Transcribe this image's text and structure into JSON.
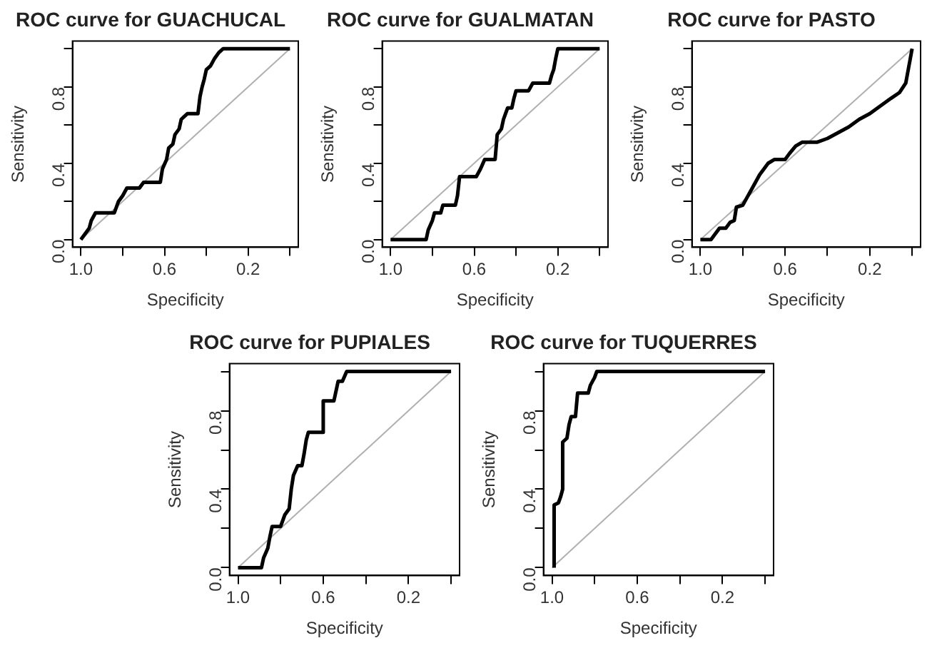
{
  "chart_data": [
    {
      "type": "line",
      "title": "ROC curve for GUACHUCAL",
      "xlabel": "Specificity",
      "ylabel": "Sensitivity",
      "xlim": [
        1.04,
        -0.04
      ],
      "ylim": [
        -0.04,
        1.04
      ],
      "xticks": [
        {
          "value": 1.0,
          "label": "1.0"
        },
        {
          "value": 0.8,
          "label": null
        },
        {
          "value": 0.6,
          "label": "0.6"
        },
        {
          "value": 0.4,
          "label": null
        },
        {
          "value": 0.2,
          "label": "0.2"
        },
        {
          "value": 0.0,
          "label": null
        }
      ],
      "yticks": [
        {
          "value": 0.0,
          "label": "0.0"
        },
        {
          "value": 0.2,
          "label": null
        },
        {
          "value": 0.4,
          "label": "0.4"
        },
        {
          "value": 0.6,
          "label": null
        },
        {
          "value": 0.8,
          "label": "0.8"
        },
        {
          "value": 1.0,
          "label": null
        }
      ],
      "grid": false,
      "legend": false,
      "marker": "none",
      "line_style": "solid",
      "series": [
        {
          "color": "#000000",
          "x": [
            1.0,
            0.98,
            0.96,
            0.95,
            0.93,
            0.84,
            0.82,
            0.8,
            0.78,
            0.72,
            0.7,
            0.62,
            0.61,
            0.59,
            0.58,
            0.56,
            0.55,
            0.53,
            0.52,
            0.49,
            0.44,
            0.43,
            0.42,
            0.41,
            0.4,
            0.38,
            0.36,
            0.34,
            0.32,
            0.0
          ],
          "values": [
            0,
            0.03,
            0.06,
            0.1,
            0.14,
            0.14,
            0.2,
            0.23,
            0.27,
            0.27,
            0.3,
            0.3,
            0.37,
            0.42,
            0.48,
            0.5,
            0.55,
            0.58,
            0.63,
            0.66,
            0.66,
            0.75,
            0.8,
            0.84,
            0.89,
            0.91,
            0.95,
            0.98,
            1.0,
            1.0
          ]
        },
        {
          "color": "#b0b0b0",
          "x": [
            1.0,
            0.0
          ],
          "values": [
            0.0,
            1.0
          ]
        }
      ]
    },
    {
      "type": "line",
      "title": "ROC curve for GUALMATAN",
      "xlabel": "Specificity",
      "ylabel": "Sensitivity",
      "xlim": [
        1.04,
        -0.04
      ],
      "ylim": [
        -0.04,
        1.04
      ],
      "xticks": [
        {
          "value": 1.0,
          "label": "1.0"
        },
        {
          "value": 0.8,
          "label": null
        },
        {
          "value": 0.6,
          "label": "0.6"
        },
        {
          "value": 0.4,
          "label": null
        },
        {
          "value": 0.2,
          "label": "0.2"
        },
        {
          "value": 0.0,
          "label": null
        }
      ],
      "yticks": [
        {
          "value": 0.0,
          "label": "0.0"
        },
        {
          "value": 0.2,
          "label": null
        },
        {
          "value": 0.4,
          "label": "0.4"
        },
        {
          "value": 0.6,
          "label": null
        },
        {
          "value": 0.8,
          "label": "0.8"
        },
        {
          "value": 1.0,
          "label": null
        }
      ],
      "grid": false,
      "legend": false,
      "marker": "none",
      "line_style": "solid",
      "series": [
        {
          "color": "#000000",
          "x": [
            1.0,
            0.83,
            0.82,
            0.8,
            0.79,
            0.76,
            0.75,
            0.69,
            0.68,
            0.67,
            0.59,
            0.57,
            0.55,
            0.5,
            0.49,
            0.47,
            0.46,
            0.45,
            0.44,
            0.42,
            0.41,
            0.4,
            0.34,
            0.32,
            0.24,
            0.23,
            0.22,
            0.21,
            0.2,
            0.0
          ],
          "values": [
            0,
            0,
            0.05,
            0.1,
            0.14,
            0.14,
            0.18,
            0.18,
            0.23,
            0.33,
            0.33,
            0.37,
            0.42,
            0.42,
            0.55,
            0.58,
            0.63,
            0.66,
            0.69,
            0.69,
            0.74,
            0.78,
            0.78,
            0.82,
            0.82,
            0.86,
            0.89,
            0.95,
            1.0,
            1.0
          ]
        },
        {
          "color": "#b0b0b0",
          "x": [
            1.0,
            0.0
          ],
          "values": [
            0.0,
            1.0
          ]
        }
      ]
    },
    {
      "type": "line",
      "title": "ROC curve for PASTO",
      "xlabel": "Specificity",
      "ylabel": "Sensitivity",
      "xlim": [
        1.04,
        -0.04
      ],
      "ylim": [
        -0.04,
        1.04
      ],
      "xticks": [
        {
          "value": 1.0,
          "label": "1.0"
        },
        {
          "value": 0.8,
          "label": null
        },
        {
          "value": 0.6,
          "label": "0.6"
        },
        {
          "value": 0.4,
          "label": null
        },
        {
          "value": 0.2,
          "label": "0.2"
        },
        {
          "value": 0.0,
          "label": null
        }
      ],
      "yticks": [
        {
          "value": 0.0,
          "label": "0.0"
        },
        {
          "value": 0.2,
          "label": null
        },
        {
          "value": 0.4,
          "label": "0.4"
        },
        {
          "value": 0.6,
          "label": null
        },
        {
          "value": 0.8,
          "label": "0.8"
        },
        {
          "value": 1.0,
          "label": null
        }
      ],
      "grid": false,
      "legend": false,
      "marker": "none",
      "line_style": "solid",
      "series": [
        {
          "color": "#000000",
          "x": [
            1.0,
            0.95,
            0.93,
            0.91,
            0.88,
            0.86,
            0.84,
            0.83,
            0.8,
            0.78,
            0.76,
            0.74,
            0.72,
            0.7,
            0.68,
            0.65,
            0.6,
            0.58,
            0.55,
            0.52,
            0.45,
            0.4,
            0.35,
            0.3,
            0.25,
            0.2,
            0.15,
            0.1,
            0.06,
            0.03,
            0.02,
            0.01,
            0.0
          ],
          "values": [
            0,
            0,
            0.03,
            0.06,
            0.06,
            0.09,
            0.1,
            0.17,
            0.18,
            0.22,
            0.26,
            0.3,
            0.34,
            0.37,
            0.4,
            0.42,
            0.42,
            0.45,
            0.49,
            0.51,
            0.51,
            0.53,
            0.56,
            0.59,
            0.63,
            0.66,
            0.7,
            0.74,
            0.77,
            0.82,
            0.88,
            0.94,
            1.0
          ]
        },
        {
          "color": "#b0b0b0",
          "x": [
            1.0,
            0.0
          ],
          "values": [
            0.0,
            1.0
          ]
        }
      ]
    },
    {
      "type": "line",
      "title": "ROC curve for PUPIALES",
      "xlabel": "Specificity",
      "ylabel": "Sensitivity",
      "xlim": [
        1.04,
        -0.04
      ],
      "ylim": [
        -0.04,
        1.04
      ],
      "xticks": [
        {
          "value": 1.0,
          "label": "1.0"
        },
        {
          "value": 0.8,
          "label": null
        },
        {
          "value": 0.6,
          "label": "0.6"
        },
        {
          "value": 0.4,
          "label": null
        },
        {
          "value": 0.2,
          "label": "0.2"
        },
        {
          "value": 0.0,
          "label": null
        }
      ],
      "yticks": [
        {
          "value": 0.0,
          "label": "0.0"
        },
        {
          "value": 0.2,
          "label": null
        },
        {
          "value": 0.4,
          "label": "0.4"
        },
        {
          "value": 0.6,
          "label": null
        },
        {
          "value": 0.8,
          "label": "0.8"
        },
        {
          "value": 1.0,
          "label": null
        }
      ],
      "grid": false,
      "legend": false,
      "marker": "none",
      "line_style": "solid",
      "series": [
        {
          "color": "#000000",
          "x": [
            1.0,
            0.89,
            0.88,
            0.86,
            0.85,
            0.84,
            0.8,
            0.78,
            0.76,
            0.75,
            0.74,
            0.72,
            0.7,
            0.69,
            0.68,
            0.67,
            0.6,
            0.6,
            0.55,
            0.54,
            0.53,
            0.51,
            0.49,
            0.0
          ],
          "values": [
            0,
            0,
            0.05,
            0.1,
            0.16,
            0.21,
            0.21,
            0.27,
            0.3,
            0.4,
            0.47,
            0.52,
            0.52,
            0.58,
            0.65,
            0.69,
            0.69,
            0.85,
            0.85,
            0.9,
            0.95,
            0.95,
            1.0,
            1.0
          ]
        },
        {
          "color": "#b0b0b0",
          "x": [
            1.0,
            0.0
          ],
          "values": [
            0.0,
            1.0
          ]
        }
      ]
    },
    {
      "type": "line",
      "title": "ROC curve for TUQUERRES",
      "xlabel": "Specificity",
      "ylabel": "Sensitivity",
      "xlim": [
        1.04,
        -0.04
      ],
      "ylim": [
        -0.04,
        1.04
      ],
      "xticks": [
        {
          "value": 1.0,
          "label": "1.0"
        },
        {
          "value": 0.8,
          "label": null
        },
        {
          "value": 0.6,
          "label": "0.6"
        },
        {
          "value": 0.4,
          "label": null
        },
        {
          "value": 0.2,
          "label": "0.2"
        },
        {
          "value": 0.0,
          "label": null
        }
      ],
      "yticks": [
        {
          "value": 0.0,
          "label": "0.0"
        },
        {
          "value": 0.2,
          "label": null
        },
        {
          "value": 0.4,
          "label": "0.4"
        },
        {
          "value": 0.6,
          "label": null
        },
        {
          "value": 0.8,
          "label": "0.8"
        },
        {
          "value": 1.0,
          "label": null
        }
      ],
      "grid": false,
      "legend": false,
      "marker": "none",
      "line_style": "solid",
      "series": [
        {
          "color": "#000000",
          "x": [
            0.99,
            0.99,
            0.97,
            0.96,
            0.95,
            0.95,
            0.93,
            0.92,
            0.91,
            0.89,
            0.88,
            0.83,
            0.82,
            0.81,
            0.8,
            0.79,
            0.0
          ],
          "values": [
            0,
            0.32,
            0.33,
            0.36,
            0.4,
            0.64,
            0.66,
            0.73,
            0.77,
            0.77,
            0.89,
            0.89,
            0.93,
            0.95,
            0.97,
            1.0,
            1.0
          ]
        },
        {
          "color": "#b0b0b0",
          "x": [
            1.0,
            0.0
          ],
          "values": [
            0.0,
            1.0
          ]
        }
      ]
    }
  ]
}
